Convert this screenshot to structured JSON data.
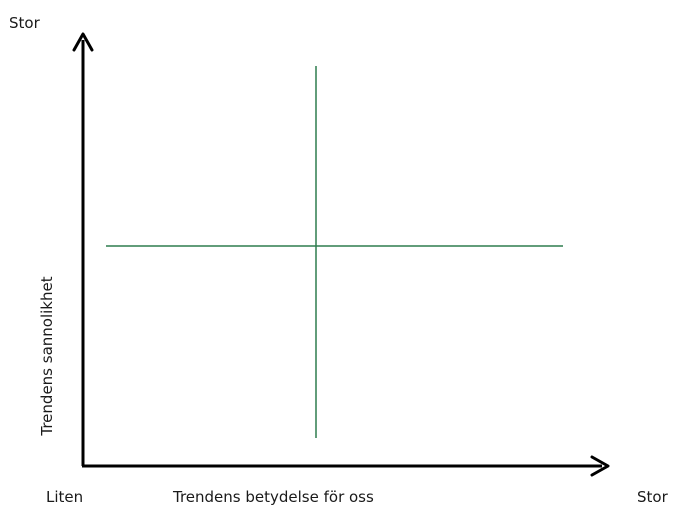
{
  "labels": {
    "y_high": "Stor",
    "y_axis": "Trendens sannolikhet",
    "x_low": "Liten",
    "x_axis": "Trendens betydelse för oss",
    "x_high": "Stor"
  },
  "colors": {
    "axis": "#000000",
    "divider": "#2e7d4f"
  }
}
